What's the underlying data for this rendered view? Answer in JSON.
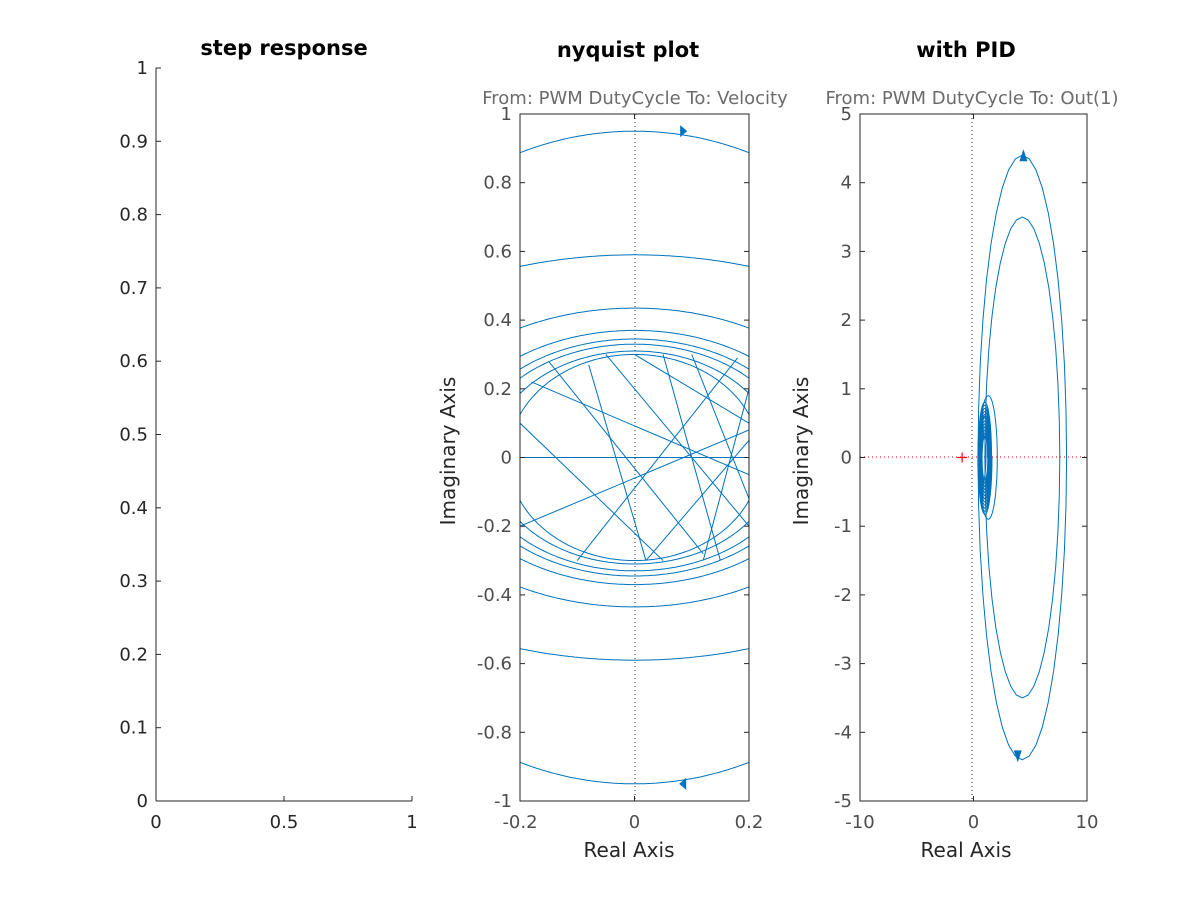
{
  "chart_data": [
    {
      "type": "line",
      "title": "step response",
      "subtitle": "",
      "xlabel": "",
      "ylabel": "",
      "xlim": [
        0,
        1
      ],
      "ylim": [
        0,
        1
      ],
      "xticks": [
        "0",
        "0.5",
        "1"
      ],
      "yticks": [
        "0",
        "0.1",
        "0.2",
        "0.3",
        "0.4",
        "0.5",
        "0.6",
        "0.7",
        "0.8",
        "0.9",
        "1"
      ],
      "grid": false,
      "series": []
    },
    {
      "type": "line",
      "title": "nyquist plot",
      "subtitle": "From: PWM DutyCycle  To: Velocity",
      "xlabel": "Real Axis",
      "ylabel": "Imaginary Axis",
      "xlim": [
        -0.2,
        0.2
      ],
      "ylim": [
        -1,
        1
      ],
      "xticks": [
        "-0.2",
        "0",
        "0.2"
      ],
      "yticks": [
        "-1",
        "-0.8",
        "-0.6",
        "-0.4",
        "-0.2",
        "0",
        "0.2",
        "0.4",
        "0.6",
        "0.8",
        "1"
      ],
      "grid": false,
      "curve_color": "#0072bd",
      "series": [
        {
          "rx": 0.56,
          "ry": 0.95
        },
        {
          "rx": 0.6,
          "ry": 0.59
        },
        {
          "rx": 0.4,
          "ry": 0.435
        },
        {
          "rx": 0.33,
          "ry": 0.37
        },
        {
          "rx": 0.3,
          "ry": 0.345
        },
        {
          "rx": 0.28,
          "ry": 0.33
        },
        {
          "rx": 0.25,
          "ry": 0.31
        },
        {
          "rx": 0.22,
          "ry": 0.3
        }
      ]
    },
    {
      "type": "line",
      "title": "with PID",
      "subtitle": "From: PWM DutyCycle  To: Out(1)",
      "xlabel": "Real Axis",
      "ylabel": "Imaginary Axis",
      "xlim": [
        -10,
        10
      ],
      "ylim": [
        -5,
        5
      ],
      "xticks": [
        "-10",
        "0",
        "10"
      ],
      "yticks": [
        "-5",
        "-4",
        "-3",
        "-2",
        "-1",
        "0",
        "1",
        "2",
        "3",
        "4",
        "5"
      ],
      "grid": false,
      "curve_color": "#0072bd",
      "critical_point": {
        "x": -1,
        "y": 0,
        "color": "#ff0000"
      },
      "series": [
        {
          "cx": 4.3,
          "rx": 3.9,
          "ry": 4.4
        },
        {
          "cx": 4.3,
          "rx": 3.3,
          "ry": 3.5
        },
        {
          "cx": 1.3,
          "rx": 0.8,
          "ry": 0.9
        },
        {
          "cx": 1.0,
          "rx": 0.5,
          "ry": 0.6
        },
        {
          "cx": 0.8,
          "rx": 0.3,
          "ry": 0.35
        }
      ]
    }
  ]
}
